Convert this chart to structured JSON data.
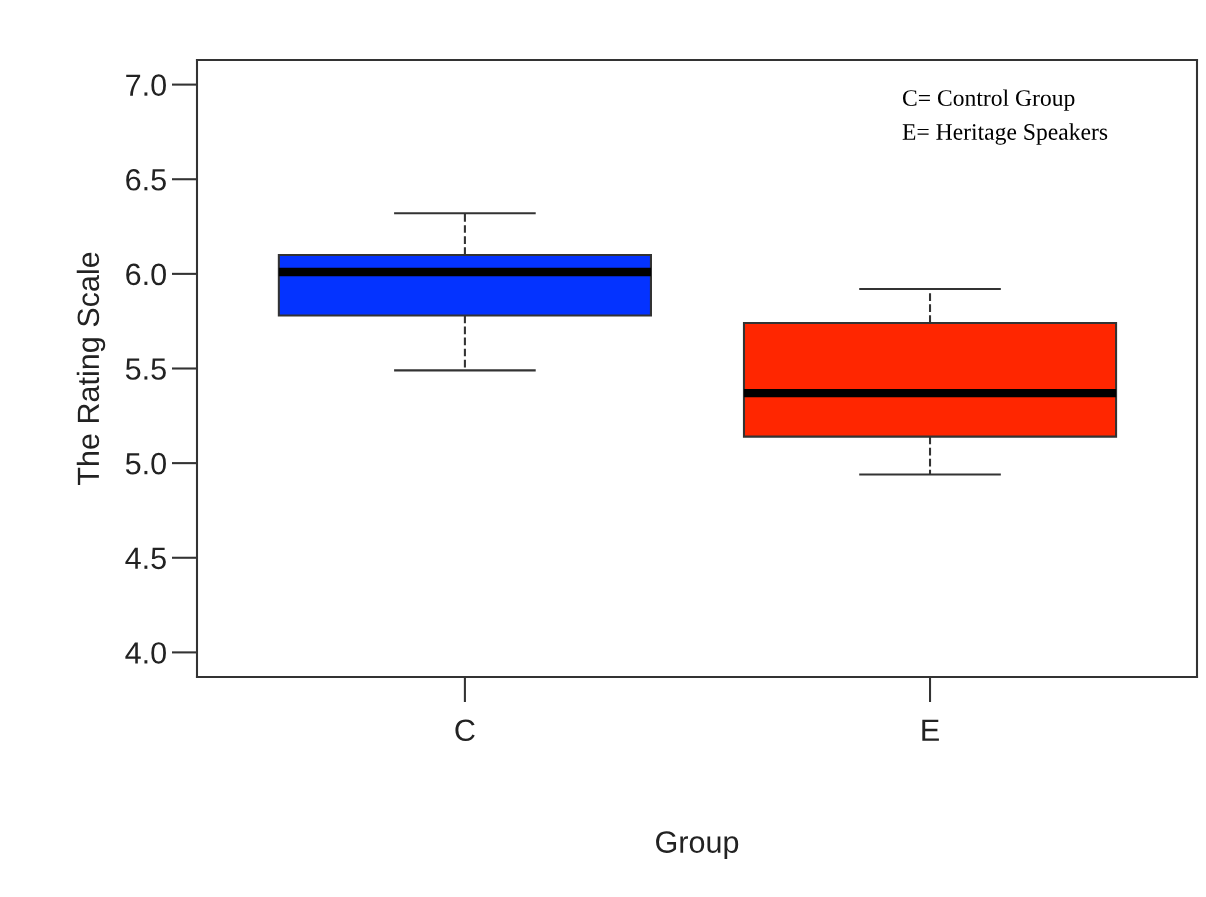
{
  "chart_data": {
    "type": "box",
    "xlabel": "Group",
    "ylabel": "The Rating Scale",
    "categories": [
      "C",
      "E"
    ],
    "series": [
      {
        "colors": [
          "#0433ff",
          "#ff2600"
        ],
        "boxes": [
          {
            "low": 5.49,
            "q1": 5.78,
            "median": 6.01,
            "q3": 6.1,
            "high": 6.32
          },
          {
            "low": 4.94,
            "q1": 5.14,
            "median": 5.37,
            "q3": 5.74,
            "high": 5.92
          }
        ]
      }
    ],
    "ylim": [
      3.87,
      7.13
    ],
    "yticks": [
      {
        "value": 4,
        "label": "4.0"
      },
      4.5,
      {
        "value": 5,
        "label": "5.0"
      },
      5.5,
      {
        "value": 6,
        "label": "6.0"
      },
      6.5,
      {
        "value": 7,
        "label": "7.0"
      }
    ],
    "line_style": "dashed",
    "grid": false,
    "legend": false,
    "annotations": [
      "C= Control Group",
      "E= Heritage Speakers"
    ]
  }
}
